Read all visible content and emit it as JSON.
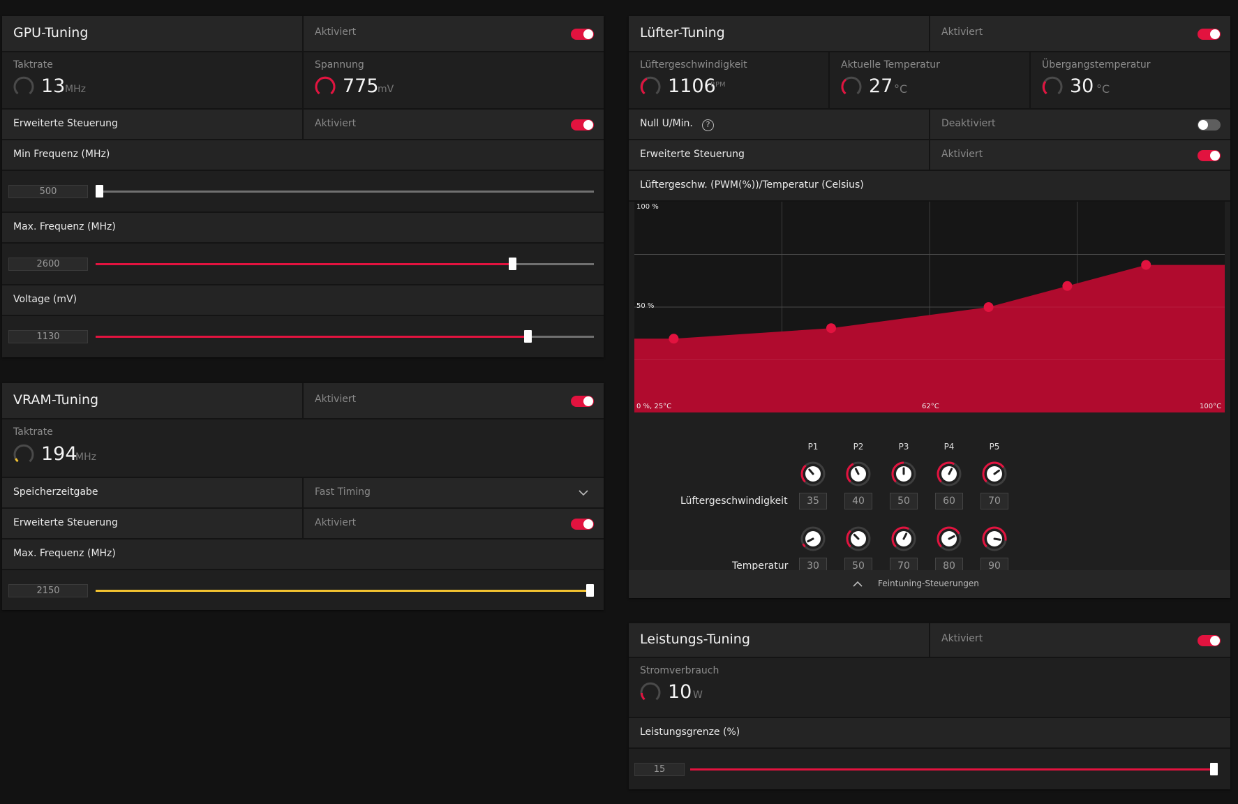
{
  "colors": {
    "accent": "#e2133f",
    "chart_fill": "#b00b2e",
    "vram_accent": "#f2c230",
    "panel": "#1f1f1f",
    "gauge_track": "#4a4a4a"
  },
  "gpu": {
    "title": "GPU-Tuning",
    "status": "Aktiviert",
    "enabled": true,
    "clock": {
      "label": "Taktrate",
      "value": "13",
      "unit": "MHz"
    },
    "voltage": {
      "label": "Spannung",
      "value": "775",
      "unit": "mV"
    },
    "advanced": {
      "label": "Erweiterte Steuerung",
      "status": "Aktiviert",
      "enabled": true
    },
    "min_freq": {
      "label": "Min Frequenz (MHz)",
      "value": "500",
      "fill_percent": 0
    },
    "max_freq": {
      "label": "Max. Frequenz (MHz)",
      "value": "2600",
      "fill_percent": 83
    },
    "voltage_slider": {
      "label": "Voltage (mV)",
      "value": "1130",
      "fill_percent": 86
    }
  },
  "vram": {
    "title": "VRAM-Tuning",
    "status": "Aktiviert",
    "enabled": true,
    "clock": {
      "label": "Taktrate",
      "value": "194",
      "unit": "MHz"
    },
    "timing": {
      "label": "Speicherzeitgabe",
      "value": "Fast Timing"
    },
    "advanced": {
      "label": "Erweiterte Steuerung",
      "status": "Aktiviert",
      "enabled": true
    },
    "max_freq": {
      "label": "Max. Frequenz (MHz)",
      "value": "2150",
      "fill_percent": 100
    }
  },
  "fan": {
    "title": "Lüfter-Tuning",
    "status": "Aktiviert",
    "enabled": true,
    "speed": {
      "label": "Lüftergeschwindigkeit",
      "value": "1106",
      "unit": "RPM"
    },
    "temp": {
      "label": "Aktuelle Temperatur",
      "value": "27",
      "unit": "°C"
    },
    "junction": {
      "label": "Übergangstemperatur",
      "value": "30",
      "unit": "°C"
    },
    "zero_rpm": {
      "label": "Null U/Min.",
      "help": "?",
      "status": "Deaktiviert",
      "enabled": false
    },
    "advanced": {
      "label": "Erweiterte Steuerung",
      "status": "Aktiviert",
      "enabled": true
    },
    "curve": {
      "title": "Lüftergeschw. (PWM(%))/Temperatur (Celsius)",
      "y_top": "100 %",
      "y_mid": "50 %",
      "x_left": "0 %, 25°C",
      "x_mid": "62°C",
      "x_right": "100°C"
    },
    "points": {
      "labels": [
        "P1",
        "P2",
        "P3",
        "P4",
        "P5"
      ],
      "speed_label": "Lüftergeschwindigkeit",
      "speeds": [
        "35",
        "40",
        "50",
        "60",
        "70"
      ],
      "temp_label": "Temperatur",
      "temps": [
        "30",
        "50",
        "70",
        "80",
        "90"
      ]
    },
    "fine_tune": "Feintuning-Steuerungen"
  },
  "chart_data": {
    "type": "area",
    "title": "Lüftergeschw. (PWM(%))/Temperatur (Celsius)",
    "xlabel": "",
    "ylabel": "",
    "x": [
      30,
      50,
      70,
      80,
      90
    ],
    "values": [
      35,
      40,
      50,
      60,
      70
    ],
    "xlim": [
      25,
      100
    ],
    "ylim": [
      0,
      100
    ],
    "grid": true
  },
  "power": {
    "title": "Leistungs-Tuning",
    "status": "Aktiviert",
    "enabled": true,
    "consumption": {
      "label": "Stromverbrauch",
      "value": "10",
      "unit": "W"
    },
    "limit": {
      "label": "Leistungsgrenze (%)",
      "value": "15",
      "fill_percent": 100
    }
  }
}
